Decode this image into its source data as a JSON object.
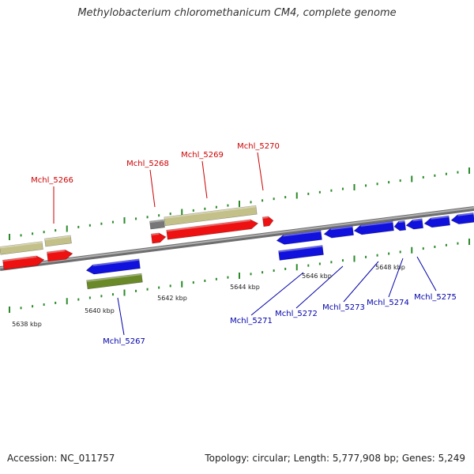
{
  "title": "Methylobacterium chloromethanicum CM4, complete genome",
  "footer": {
    "accession": "Accession: NC_011757",
    "summary": "Topology: circular; Length: 5,777,908 bp; Genes: 5,249"
  },
  "colors": {
    "backbone": "#8a8a8a",
    "forward_label": "#cc0000",
    "reverse_label": "#0000aa",
    "tick": "#2a8a2a",
    "red_gene": "#ee1111",
    "blue_gene": "#1111dd",
    "tan_feature": "#c4c08a",
    "olive_feature": "#6a8a2a",
    "gray_feature": "#777777"
  },
  "scale_labels": [
    "5638 kbp",
    "5640 kbp",
    "5642 kbp",
    "5644 kbp",
    "5646 kbp",
    "5648 kbp"
  ],
  "gene_labels_forward": [
    "Mchl_5266",
    "Mchl_5268",
    "Mchl_5269",
    "Mchl_5270"
  ],
  "gene_labels_reverse": [
    "Mchl_5267",
    "Mchl_5271",
    "Mchl_5272",
    "Mchl_5273",
    "Mchl_5274",
    "Mchl_5275"
  ]
}
